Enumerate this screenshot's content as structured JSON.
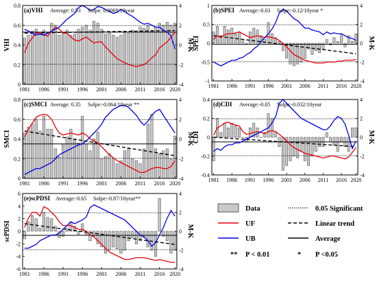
{
  "years": [
    1981,
    1982,
    1983,
    1984,
    1985,
    1986,
    1987,
    1988,
    1989,
    1990,
    1991,
    1992,
    1993,
    1994,
    1995,
    1996,
    1997,
    1998,
    1999,
    2000,
    2001,
    2002,
    2003,
    2004,
    2005,
    2006,
    2007,
    2008,
    2009,
    2010,
    2011,
    2012,
    2013,
    2014,
    2015,
    2016,
    2017,
    2018,
    2019,
    2020
  ],
  "x_ticks": [
    "1981",
    "1986",
    "1991",
    "1996",
    "2001",
    "2006",
    "2011",
    "2016",
    "2020"
  ],
  "chart_data": [
    {
      "id": "VHI",
      "type": "bar+line",
      "title": "(a)VHI",
      "average_text": "Average: 0.53",
      "slope_text": "Solpe: 0.0069/10year",
      "ylabel": "VHI",
      "y2label": "M-K",
      "ylim": [
        0,
        0.8
      ],
      "y_ticks": [
        "0",
        "0.2",
        "0.4",
        "0.6",
        "0.8"
      ],
      "y2lim": [
        -4,
        4
      ],
      "y2_ticks": [
        "-4",
        "-2",
        "0",
        "2",
        "4"
      ],
      "average": 0.53,
      "trend": [
        0.52,
        0.546
      ],
      "bars": [
        0.47,
        0.5,
        0.54,
        0.56,
        0.52,
        0.55,
        0.53,
        0.62,
        0.6,
        0.5,
        0.52,
        0.55,
        0.5,
        0.51,
        0.56,
        0.58,
        0.6,
        0.55,
        0.64,
        0.62,
        0.56,
        0.51,
        0.52,
        0.5,
        0.48,
        0.5,
        0.53,
        0.52,
        0.55,
        0.53,
        0.58,
        0.57,
        0.6,
        0.55,
        0.58,
        0.62,
        0.6,
        0.63,
        0.6,
        0.62
      ],
      "uf": [
        -0.8,
        0.2,
        0.7,
        1.2,
        1.2,
        1.0,
        0.9,
        1.4,
        1.8,
        1.6,
        1.2,
        1.2,
        0.8,
        0.5,
        0.4,
        0.6,
        0.8,
        0.5,
        0.2,
        0.3,
        0.3,
        -0.2,
        -0.6,
        -1.0,
        -1.4,
        -1.6,
        -1.8,
        -2.0,
        -2.1,
        -2.2,
        -2.1,
        -2.0,
        -1.7,
        -1.3,
        -1.0,
        -0.3,
        0.0,
        0.3,
        0.8,
        1.3
      ],
      "ub": [
        1.6,
        1.4,
        1.2,
        1.0,
        1.1,
        1.0,
        1.2,
        1.4,
        1.6,
        1.8,
        2.2,
        2.6,
        2.9,
        3.2,
        3.8,
        4.0,
        3.8,
        3.5,
        3.6,
        3.9,
        3.8,
        3.6,
        3.4,
        3.2,
        3.3,
        3.6,
        3.4,
        3.1,
        2.9,
        2.6,
        2.3,
        2.1,
        2.2,
        2.0,
        1.8,
        1.8,
        1.5,
        1.3,
        0.9,
        -0.4
      ],
      "signif": 1.96
    },
    {
      "id": "SPEI",
      "type": "bar+line",
      "title": "(b)SPEI",
      "average_text": "Average:-0.03",
      "slope_text": "Solpe:-0.12/10year *",
      "ylabel": "SPEI",
      "y2label": "M-K",
      "ylim": [
        -1,
        1
      ],
      "y_ticks": [
        "-1",
        "-0.5",
        "0",
        "0.5",
        "1"
      ],
      "y2lim": [
        -4,
        4
      ],
      "y2_ticks": [
        "-4",
        "-2",
        "0",
        "2",
        "4"
      ],
      "average": -0.03,
      "trend": [
        0.2,
        -0.28
      ],
      "bars": [
        0.3,
        0.45,
        0.2,
        0.45,
        0.35,
        0.4,
        0.25,
        0.3,
        0.1,
        0.0,
        0.3,
        0.4,
        0.35,
        0.2,
        0.1,
        0.55,
        0.25,
        0.15,
        0.05,
        -0.2,
        -0.4,
        -0.55,
        -0.6,
        -0.55,
        -0.5,
        -0.4,
        -0.15,
        -0.3,
        -0.2,
        -0.25,
        -0.15,
        0.1,
        -0.05,
        0.15,
        0.05,
        0.25,
        -0.1,
        0.2,
        0.05,
        0.25
      ],
      "uf": [
        0.4,
        0.8,
        0.6,
        0.9,
        1.0,
        1.0,
        1.1,
        1.2,
        1.0,
        0.8,
        0.6,
        0.7,
        0.8,
        0.7,
        0.6,
        0.7,
        0.6,
        0.5,
        0.3,
        0.0,
        -0.4,
        -0.8,
        -1.2,
        -1.4,
        -1.6,
        -1.8,
        -1.9,
        -2.0,
        -2.1,
        -2.1,
        -2.1,
        -2.0,
        -2.0,
        -2.0,
        -1.9,
        -1.9,
        -1.8,
        -1.8,
        -1.8,
        -1.7
      ],
      "ub": [
        -2.0,
        -2.2,
        -2.4,
        -2.2,
        -2.0,
        -1.8,
        -1.8,
        -1.6,
        -1.5,
        -1.2,
        -1.0,
        -0.6,
        -0.3,
        0.2,
        0.6,
        1.0,
        1.5,
        2.2,
        3.2,
        3.6,
        3.4,
        3.0,
        2.6,
        2.4,
        2.0,
        1.6,
        1.6,
        1.4,
        1.3,
        1.2,
        0.9,
        1.2,
        1.0,
        1.1,
        1.0,
        1.0,
        0.8,
        0.6,
        0.5,
        0.3
      ],
      "signif": 1.96
    },
    {
      "id": "SMCI",
      "type": "bar+line",
      "title": "(c)SMCI",
      "average_text": "Average: 0.35",
      "slope_text": "Solpe:-0.064/10year **",
      "ylabel": "SMCI",
      "y2label": "M-K",
      "ylim": [
        0,
        0.8
      ],
      "y_ticks": [
        "0",
        "0.2",
        "0.4",
        "0.6",
        "0.8"
      ],
      "y2lim": [
        -4,
        4
      ],
      "y2_ticks": [
        "-4",
        "-2",
        "0",
        "2",
        "4"
      ],
      "average": 0.35,
      "trend": [
        0.48,
        0.23
      ],
      "bars": [
        0.46,
        0.52,
        0.55,
        0.6,
        0.48,
        0.63,
        0.5,
        0.5,
        0.3,
        0.22,
        0.35,
        0.42,
        0.5,
        0.4,
        0.36,
        0.63,
        0.35,
        0.28,
        0.4,
        0.47,
        0.2,
        0.22,
        0.25,
        0.2,
        0.15,
        0.18,
        0.28,
        0.3,
        0.2,
        0.18,
        0.15,
        0.3,
        0.55,
        0.65,
        0.3,
        0.25,
        0.28,
        0.3,
        0.2,
        0.43
      ],
      "uf": [
        0.2,
        1.0,
        1.6,
        2.2,
        2.4,
        2.5,
        2.4,
        2.0,
        1.2,
        0.6,
        0.4,
        0.5,
        0.6,
        0.5,
        0.4,
        0.6,
        0.4,
        0.0,
        -0.2,
        -0.4,
        -0.8,
        -1.2,
        -1.6,
        -1.9,
        -2.2,
        -2.4,
        -2.6,
        -2.8,
        -3.0,
        -3.2,
        -3.4,
        -3.4,
        -3.2,
        -3.0,
        -2.9,
        -2.9,
        -3.0,
        -3.0,
        -2.8,
        -2.2
      ],
      "ub": [
        -3.6,
        -3.4,
        -3.2,
        -3.0,
        -3.0,
        -2.8,
        -2.6,
        -2.4,
        -2.0,
        -1.6,
        -1.4,
        -1.2,
        -1.0,
        -0.8,
        -0.6,
        -0.5,
        -0.2,
        0.2,
        0.6,
        1.0,
        1.5,
        2.2,
        2.6,
        3.0,
        3.2,
        3.4,
        3.4,
        3.2,
        2.8,
        2.4,
        1.8,
        1.4,
        1.8,
        2.4,
        2.8,
        3.0,
        2.4,
        1.8,
        1.2,
        0.6
      ],
      "signif": 1.96
    },
    {
      "id": "CDI",
      "type": "bar+line",
      "title": "(d)CDI",
      "average_text": "Average:-0.05",
      "slope_text": "Solpe:-0.032/10year",
      "ylabel": "CDI",
      "y2label": "M-K",
      "ylim": [
        -0.4,
        0.4
      ],
      "y_ticks": [
        "-0.4",
        "-0.2",
        "0",
        "0.2",
        "0.4"
      ],
      "y2lim": [
        -4,
        4
      ],
      "y2_ticks": [
        "-4",
        "-2",
        "0",
        "2",
        "4"
      ],
      "average": -0.05,
      "trend": [
        0.0,
        -0.1
      ],
      "bars": [
        -0.25,
        0.2,
        0.05,
        0.15,
        0.1,
        0.15,
        0.12,
        0.1,
        0.0,
        -0.05,
        0.1,
        0.15,
        0.1,
        0.0,
        0.05,
        0.25,
        0.2,
        0.05,
        -0.1,
        -0.35,
        -0.3,
        -0.25,
        -0.2,
        -0.22,
        -0.15,
        -0.25,
        -0.3,
        -0.2,
        -0.15,
        -0.1,
        -0.1,
        0.05,
        -0.05,
        -0.08,
        -0.15,
        -0.05,
        -0.1,
        -0.15,
        0.1,
        0.1
      ],
      "uf": [
        0.2,
        1.0,
        1.2,
        1.5,
        1.6,
        1.4,
        1.3,
        1.2,
        0.6,
        0.3,
        0.4,
        0.5,
        0.6,
        0.5,
        0.4,
        0.6,
        0.7,
        0.6,
        0.3,
        0.0,
        -0.4,
        -0.8,
        -1.1,
        -1.3,
        -1.5,
        -1.7,
        -1.8,
        -1.9,
        -2.0,
        -2.1,
        -2.2,
        -2.1,
        -2.0,
        -2.0,
        -2.1,
        -2.2,
        -2.3,
        -2.1,
        -1.6,
        -1.1
      ],
      "ub": [
        -1.5,
        -1.2,
        -1.4,
        -1.0,
        -0.8,
        -0.8,
        -0.6,
        -0.6,
        -0.4,
        -0.2,
        0.0,
        0.2,
        0.4,
        0.6,
        0.8,
        1.0,
        1.5,
        2.2,
        3.6,
        4.0,
        3.6,
        3.2,
        2.8,
        2.4,
        2.0,
        1.8,
        1.6,
        1.4,
        1.2,
        1.0,
        0.8,
        0.8,
        1.2,
        1.8,
        2.2,
        2.0,
        1.4,
        0.2,
        -1.2,
        -0.4
      ],
      "signif": 1.96
    },
    {
      "id": "scPDSI",
      "type": "bar+line",
      "title": "(e)scPDSI",
      "average_text": "Average:-0.65",
      "slope_text": "Solpe:-0.87/10year**",
      "ylabel": "scPDSI",
      "y2label": "M-K",
      "ylim": [
        -6,
        6
      ],
      "y_ticks": [
        "-6",
        "-4",
        "-2",
        "0",
        "2",
        "4",
        "6"
      ],
      "y2lim": [
        -4,
        4
      ],
      "y2_ticks": [
        "-4",
        "-2",
        "0",
        "2",
        "4"
      ],
      "average": -0.65,
      "trend": [
        1.2,
        -2.1
      ],
      "bars": [
        -1.2,
        1.5,
        2.5,
        2.0,
        0.5,
        3.0,
        2.2,
        2.0,
        0.8,
        -1.0,
        -0.8,
        0.5,
        1.5,
        0.8,
        -0.5,
        1.2,
        -0.5,
        -1.5,
        -0.8,
        -2.0,
        -2.5,
        -3.5,
        -3.0,
        -2.5,
        -2.8,
        -3.5,
        -3.0,
        -1.5,
        -1.0,
        -2.0,
        -1.5,
        -1.0,
        -2.5,
        -3.0,
        -4.0,
        5.2,
        -0.8,
        -1.5,
        -3.5,
        -3.0
      ],
      "uf": [
        0.4,
        1.4,
        2.0,
        2.0,
        1.6,
        2.6,
        2.4,
        2.0,
        1.6,
        1.0,
        0.6,
        0.6,
        0.6,
        0.4,
        0.2,
        0.2,
        0.0,
        -0.4,
        -0.6,
        -1.0,
        -1.4,
        -1.8,
        -2.2,
        -2.4,
        -2.6,
        -2.8,
        -3.0,
        -3.0,
        -2.9,
        -2.8,
        -2.8,
        -2.8,
        -2.9,
        -3.0,
        -3.1,
        -3.0,
        -3.1,
        -3.2,
        -3.3,
        -3.3
      ],
      "ub": [
        -1.8,
        -1.8,
        -1.6,
        -1.4,
        -1.0,
        -0.8,
        -0.6,
        -0.4,
        -0.4,
        -0.2,
        0.2,
        0.6,
        1.0,
        0.8,
        1.0,
        1.2,
        1.5,
        2.5,
        2.8,
        2.6,
        2.4,
        2.2,
        2.0,
        1.8,
        1.6,
        1.4,
        1.2,
        0.8,
        0.4,
        0.0,
        -0.4,
        -0.6,
        -1.0,
        -1.6,
        -1.2,
        -0.4,
        0.4,
        1.4,
        2.2,
        1.6
      ],
      "signif": 1.96
    }
  ],
  "legend": {
    "data": "Data",
    "significant": "0.05 Significant",
    "uf": "UF",
    "linear_trend": "Linear trend",
    "ub": "UB",
    "average": "Average",
    "p01_mark": "**",
    "p01": "P < 0.01",
    "p05_mark": "*",
    "p05": "P <0.05"
  },
  "colors": {
    "bar_fill": "#c8c8c8",
    "bar_stroke": "#3a3a3a",
    "uf": "#e8000b",
    "ub": "#0000e6",
    "average": "#000000",
    "trend": "#000000"
  }
}
